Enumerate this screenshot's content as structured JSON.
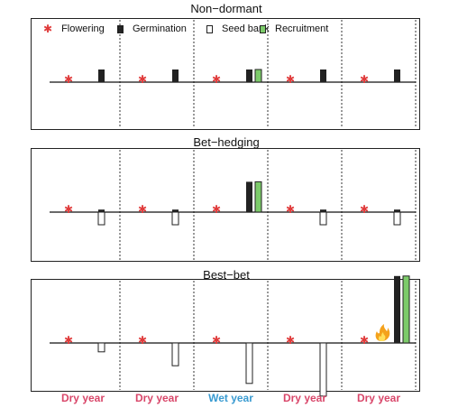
{
  "legend": {
    "items": [
      {
        "label": "Flowering",
        "icon": "asterisk-icon",
        "color": "#e03b3b"
      },
      {
        "label": "Germination",
        "icon": "filled-bar-icon",
        "color": "#222222"
      },
      {
        "label": "Seed bank",
        "icon": "hollow-bar-icon",
        "color": "#ffffff"
      },
      {
        "label": "Recruitment",
        "icon": "green-bar-icon",
        "color": "#7ccb6a"
      }
    ]
  },
  "years": [
    {
      "label": "Dry year",
      "color": "#d9476a"
    },
    {
      "label": "Dry year",
      "color": "#d9476a"
    },
    {
      "label": "Wet year",
      "color": "#3a9bd1"
    },
    {
      "label": "Dry year",
      "color": "#d9476a"
    },
    {
      "label": "Dry year",
      "color": "#d9476a"
    }
  ],
  "panels": [
    {
      "title": "Non−dormant",
      "years": [
        {
          "germination": 1,
          "seedbank": 0,
          "recruitment": 0,
          "fire": false
        },
        {
          "germination": 1,
          "seedbank": 0,
          "recruitment": 0,
          "fire": false
        },
        {
          "germination": 1,
          "seedbank": 0,
          "recruitment": 1,
          "fire": false
        },
        {
          "germination": 1,
          "seedbank": 0,
          "recruitment": 0,
          "fire": false
        },
        {
          "germination": 1,
          "seedbank": 0,
          "recruitment": 0,
          "fire": false
        }
      ]
    },
    {
      "title": "Bet−hedging",
      "years": [
        {
          "germination": 0.2,
          "seedbank": 1,
          "recruitment": 0,
          "fire": false
        },
        {
          "germination": 0.2,
          "seedbank": 1,
          "recruitment": 0,
          "fire": false
        },
        {
          "germination": 2.4,
          "seedbank": 0,
          "recruitment": 2.4,
          "fire": false
        },
        {
          "germination": 0.2,
          "seedbank": 1,
          "recruitment": 0,
          "fire": false
        },
        {
          "germination": 0.2,
          "seedbank": 1,
          "recruitment": 0,
          "fire": false
        }
      ]
    },
    {
      "title": "Best−bet",
      "years": [
        {
          "germination": 0,
          "seedbank": 0.7,
          "recruitment": 0,
          "fire": false
        },
        {
          "germination": 0,
          "seedbank": 1.8,
          "recruitment": 0,
          "fire": false
        },
        {
          "germination": 0,
          "seedbank": 3.2,
          "recruitment": 0,
          "fire": false
        },
        {
          "germination": 0,
          "seedbank": 4.2,
          "recruitment": 0,
          "fire": false
        },
        {
          "germination": 5.3,
          "seedbank": 0,
          "recruitment": 5.3,
          "fire": true
        }
      ]
    }
  ]
}
